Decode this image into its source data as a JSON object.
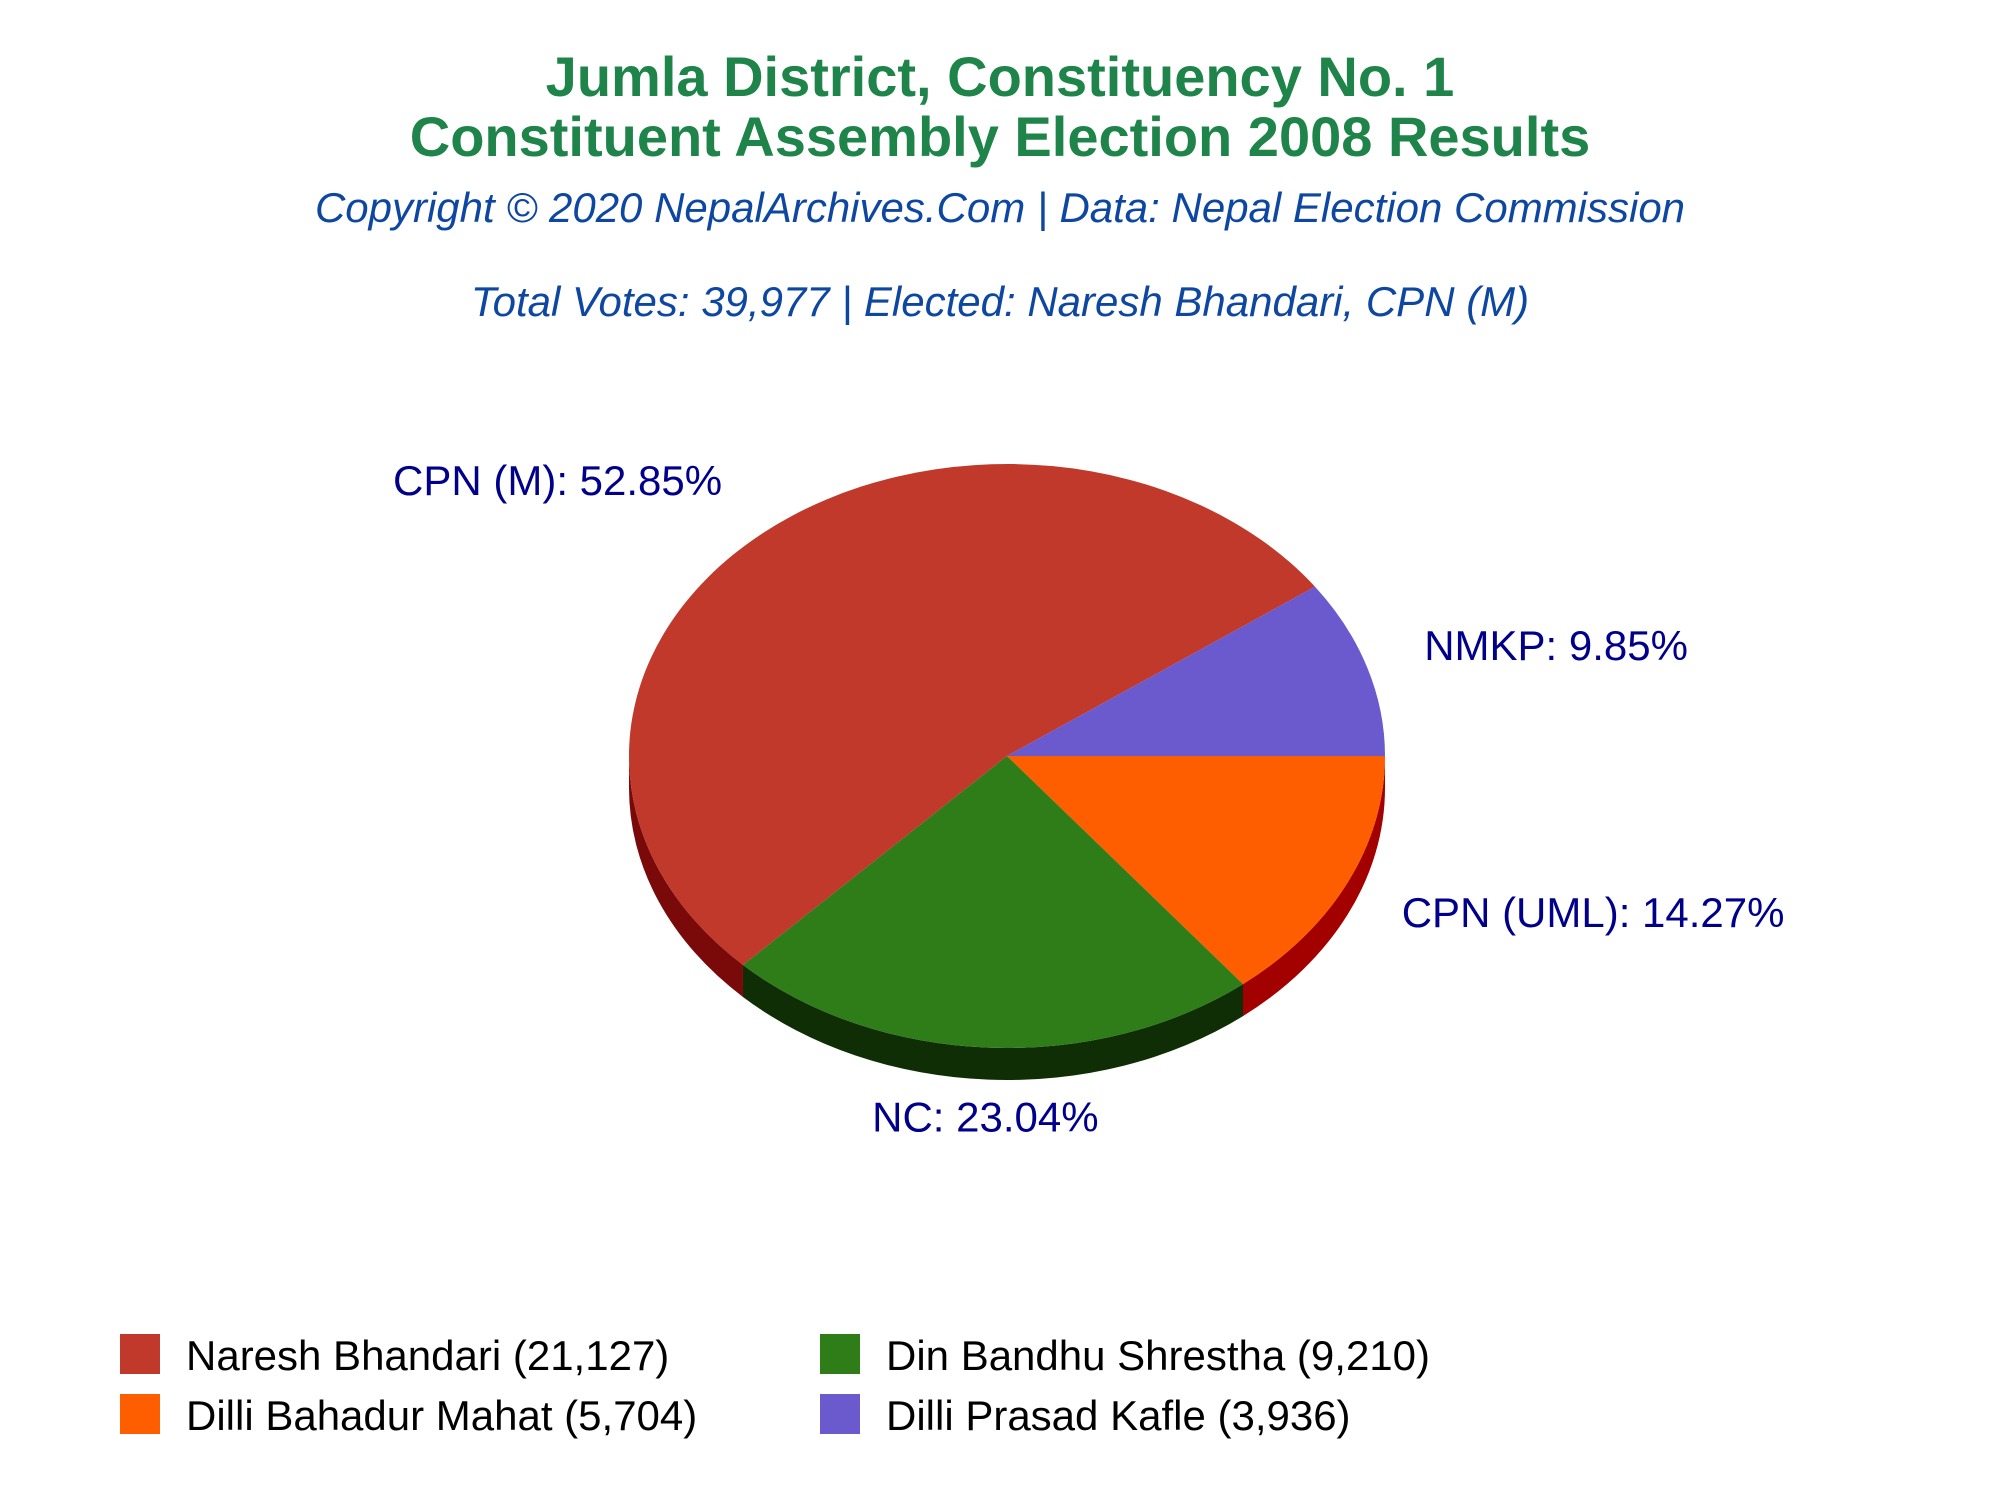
{
  "chart_data": {
    "type": "pie",
    "title_line1": "Jumla District, Constituency No. 1",
    "title_line2": "Constituent Assembly Election 2008 Results",
    "copyright": "Copyright © 2020 NepalArchives.Com | Data: Nepal Election Commission",
    "summary": "Total Votes: 39,977 | Elected: Naresh Bhandari, CPN (M)",
    "slices": [
      {
        "candidate": "Naresh Bhandari",
        "party": "CPN (M)",
        "votes": 21127,
        "percent": 52.85,
        "label": "CPN (M): 52.85%",
        "legend": "Naresh Bhandari (21,127)",
        "color": "#c0392b",
        "side_color": "#7a0a0a"
      },
      {
        "candidate": "Din Bandhu Shrestha",
        "party": "NC",
        "votes": 9210,
        "percent": 23.04,
        "label": "NC: 23.04%",
        "legend": "Din Bandhu Shrestha (9,210)",
        "color": "#2e7d18",
        "side_color": "#0f2e05"
      },
      {
        "candidate": "Dilli Bahadur Mahat",
        "party": "CPN (UML)",
        "votes": 5704,
        "percent": 14.27,
        "label": "CPN (UML): 14.27%",
        "legend": "Dilli Bahadur Mahat (5,704)",
        "color": "#ff5e00",
        "side_color": "#a30000"
      },
      {
        "candidate": "Dilli Prasad Kafle",
        "party": "NMKP",
        "votes": 3936,
        "percent": 9.85,
        "label": "NMKP: 9.85%",
        "legend": "Dilli Prasad Kafle (3,936)",
        "color": "#6a5acd",
        "side_color": "#3d2f8f"
      }
    ],
    "colors": {
      "title": "#1e8449",
      "subtitle": "#0d47a1",
      "labels": "#00008b",
      "legend_text": "#000000"
    }
  }
}
